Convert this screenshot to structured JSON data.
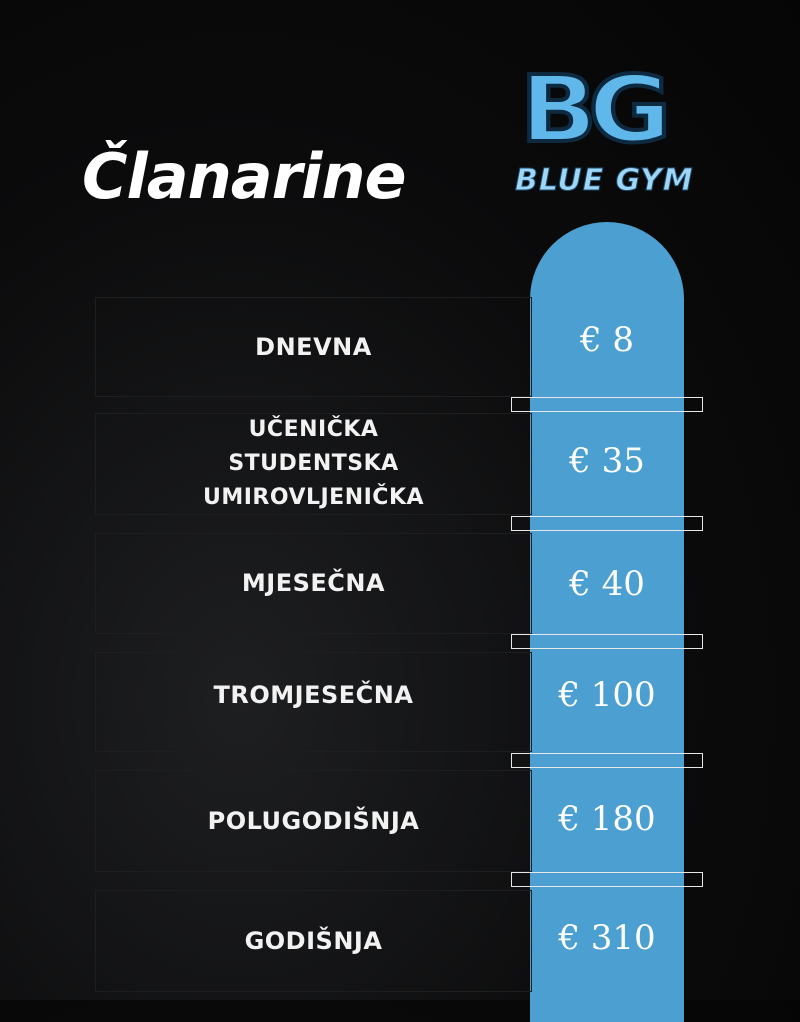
{
  "title": "Članarine",
  "logo": {
    "mark": "BG",
    "text": "BLUE GYM"
  },
  "colors": {
    "accent": "#4b9fd1",
    "background": "#0b0b0c",
    "text": "#ffffff"
  },
  "memberships": [
    {
      "label": "DNEVNA",
      "price": "€ 8"
    },
    {
      "label": "UČENIČKA\nSTUDENTSKA\nUMIROVLJENIČKA",
      "price": "€ 35"
    },
    {
      "label": "MJESEČNA",
      "price": "€ 40"
    },
    {
      "label": "TROMJESEČNA",
      "price": "€ 100"
    },
    {
      "label": "POLUGODIŠNJA",
      "price": "€ 180"
    },
    {
      "label": "GODIŠNJA",
      "price": "€ 310"
    }
  ]
}
